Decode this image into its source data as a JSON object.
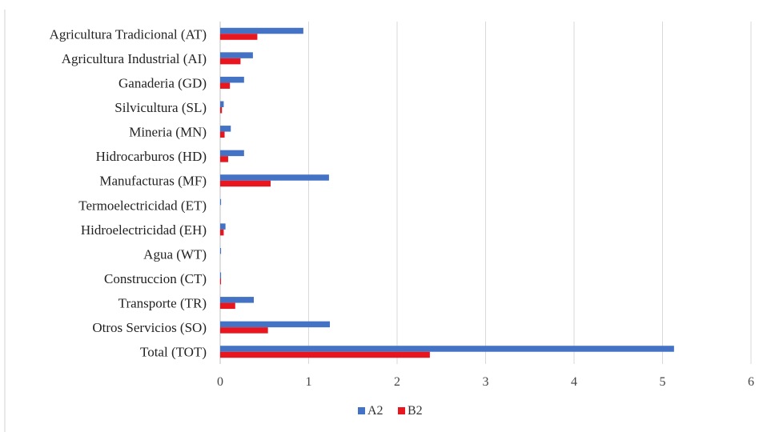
{
  "chart_data": {
    "type": "bar",
    "orientation": "horizontal",
    "categories": [
      "Agricultura Tradicional (AT)",
      "Agricultura Industrial (AI)",
      "Ganaderia (GD)",
      "Silvicultura (SL)",
      "Mineria (MN)",
      "Hidrocarburos (HD)",
      "Manufacturas (MF)",
      "Termoelectricidad (ET)",
      "Hidroelectricidad (EH)",
      "Agua (WT)",
      "Construccion (CT)",
      "Transporte (TR)",
      "Otros Servicios (SO)",
      "Total  (TOT)"
    ],
    "series": [
      {
        "name": "A2",
        "color": "#4472C4",
        "values": [
          0.94,
          0.37,
          0.27,
          0.04,
          0.12,
          0.27,
          1.23,
          0.01,
          0.06,
          0.01,
          0.01,
          0.38,
          1.24,
          5.13
        ]
      },
      {
        "name": "B2",
        "color": "#E8161F",
        "values": [
          0.42,
          0.23,
          0.11,
          0.02,
          0.05,
          0.09,
          0.57,
          0.0,
          0.04,
          0.0,
          0.01,
          0.17,
          0.54,
          2.37
        ]
      }
    ],
    "xticks": [
      "0",
      "1",
      "2",
      "3",
      "4",
      "5",
      "6"
    ],
    "xlim": [
      0,
      6
    ],
    "grid": "vertical",
    "legend": "bottom-center",
    "title": "",
    "xlabel": "",
    "ylabel": ""
  }
}
